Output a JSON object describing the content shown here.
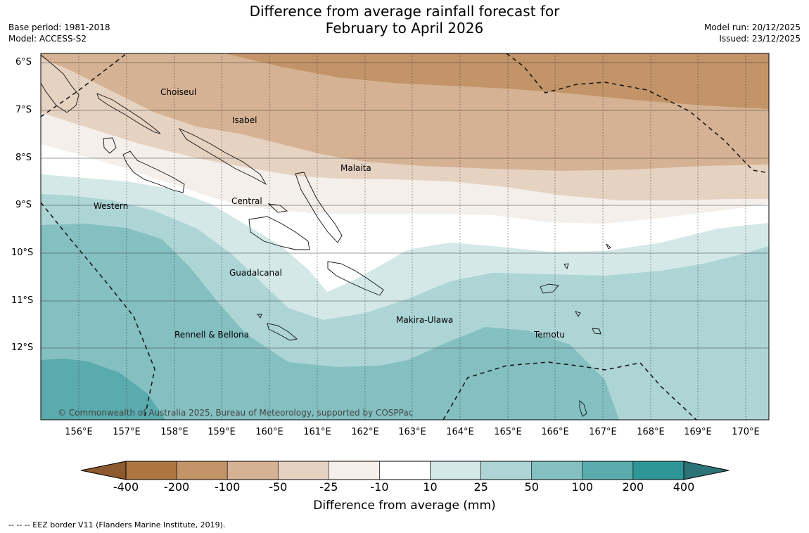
{
  "title_line1": "Difference from average rainfall forecast for",
  "title_line2": "February to April 2026",
  "meta_left": {
    "base_period": "Base period: 1981-2018",
    "model": "Model: ACCESS-S2"
  },
  "meta_right": {
    "model_run": "Model run: 20/12/2025",
    "issued": "Issued: 23/12/2025"
  },
  "map": {
    "lat_labels": [
      "6°S",
      "7°S",
      "8°S",
      "9°S",
      "10°S",
      "11°S",
      "12°S"
    ],
    "lon_labels": [
      "156°E",
      "157°E",
      "158°E",
      "159°E",
      "160°E",
      "161°E",
      "162°E",
      "163°E",
      "164°E",
      "165°E",
      "166°E",
      "167°E",
      "168°E",
      "169°E",
      "170°E"
    ],
    "places": {
      "choiseul": "Choiseul",
      "isabel": "Isabel",
      "malaita": "Malaita",
      "central": "Central",
      "western": "Western",
      "guadalcanal": "Guadalcanal",
      "makira_ulawa": "Makira-Ulawa",
      "rennell_bellona": "Rennell & Bellona",
      "temotu": "Temotu"
    },
    "copyright": "© Commonwealth of Australia 2025, Bureau of Meteorology, supported by COSPPac"
  },
  "legend": {
    "ticks": [
      "-400",
      "-200",
      "-100",
      "-50",
      "-25",
      "-10",
      "10",
      "25",
      "50",
      "100",
      "200",
      "400"
    ],
    "colors": [
      "#8c5a2e",
      "#ae7540",
      "#c29467",
      "#d5b293",
      "#e6d2c1",
      "#f4efea",
      "#ffffff",
      "#d4e8e8",
      "#add5d6",
      "#84c0c1",
      "#5aabad",
      "#2f9697",
      "#2b7376"
    ],
    "title": "Difference from average (mm)"
  },
  "eez_note": "--  --  -- EEZ border V11 (Flanders Marine Institute, 2019)."
}
